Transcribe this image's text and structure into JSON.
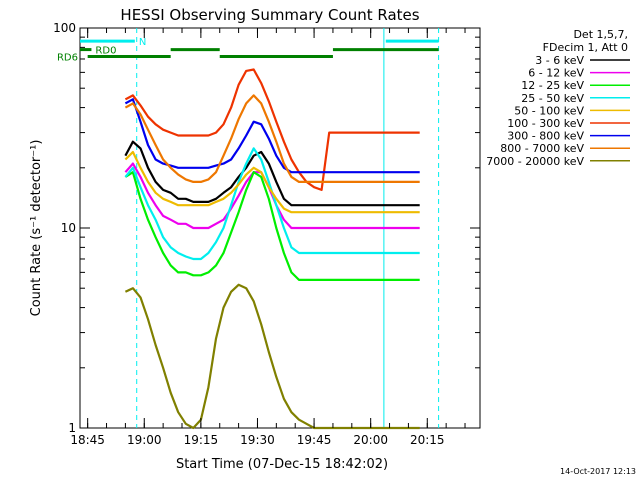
{
  "chart_data": {
    "type": "line",
    "title": "HESSI Observing Summary Count Rates",
    "xlabel": "Start Time (07-Dec-15 18:42:02)",
    "ylabel": "Count Rate (s⁻¹ detector⁻¹)",
    "yscale": "log",
    "ylim": [
      1,
      100
    ],
    "xlim": [
      -2.03,
      103.97
    ],
    "x_unit": "minutes after 18:45",
    "yticks": [
      1,
      10,
      100
    ],
    "ytick_labels": [
      "1",
      "10",
      "100"
    ],
    "xticks": [
      0,
      15,
      30,
      45,
      60,
      75,
      90
    ],
    "xtick_labels": [
      "18:45",
      "19:00",
      "19:15",
      "19:30",
      "19:45",
      "20:00",
      "20:15"
    ],
    "legend_header": [
      "Det 1,5,7,",
      "FDecim 1, Att 0"
    ],
    "legend_position": "right",
    "series": [
      {
        "name": "3 - 6 keV",
        "color": "#000000",
        "x": [
          9,
          10,
          12,
          14,
          16,
          18,
          20,
          22,
          24,
          26,
          28,
          30,
          32,
          34,
          36,
          38,
          40,
          42,
          44,
          46,
          48,
          50,
          52,
          54,
          56,
          58,
          60,
          62,
          64,
          66,
          68,
          70,
          72,
          74,
          76,
          78,
          80,
          82,
          84,
          86,
          88
        ],
        "values": [
          null,
          23,
          27,
          25,
          20,
          17,
          15.5,
          15,
          14,
          14,
          13.5,
          13.5,
          13.5,
          14,
          15,
          16,
          18,
          20,
          23,
          24,
          21,
          17,
          14,
          13,
          13,
          13,
          13,
          13,
          13,
          13,
          13,
          13,
          13,
          13,
          13,
          13,
          13,
          13,
          13,
          13,
          13
        ]
      },
      {
        "name": "6 - 12 keV",
        "color": "#ee00ee",
        "x": [
          10,
          12,
          14,
          16,
          18,
          20,
          22,
          24,
          26,
          28,
          30,
          32,
          34,
          36,
          38,
          40,
          42,
          44,
          46,
          48,
          50,
          52,
          54,
          56,
          58,
          60,
          62,
          64,
          66,
          68,
          70,
          72,
          74,
          76,
          78,
          80,
          82,
          84,
          86,
          88
        ],
        "values": [
          19,
          21,
          18,
          15,
          13,
          11.5,
          11,
          10.5,
          10.5,
          10,
          10,
          10,
          10.5,
          11,
          12.5,
          14.5,
          17,
          19,
          19,
          16,
          13,
          11,
          10,
          10,
          10,
          10,
          10,
          10,
          10,
          10,
          10,
          10,
          10,
          10,
          10,
          10,
          10,
          10,
          10,
          10
        ]
      },
      {
        "name": "12 - 25 keV",
        "color": "#00ee00",
        "x": [
          10,
          12,
          14,
          16,
          18,
          20,
          22,
          24,
          26,
          28,
          30,
          32,
          34,
          36,
          38,
          40,
          42,
          44,
          46,
          48,
          50,
          52,
          54,
          56,
          58,
          60,
          62,
          64,
          66,
          68,
          70,
          72,
          74,
          76,
          78,
          80,
          82,
          84,
          86,
          88
        ],
        "values": [
          18,
          19,
          14,
          11,
          9,
          7.5,
          6.5,
          6,
          6,
          5.8,
          5.8,
          6,
          6.5,
          7.5,
          9.5,
          12,
          15.5,
          19,
          18,
          14,
          10,
          7.5,
          6,
          5.5,
          5.5,
          5.5,
          5.5,
          5.5,
          5.5,
          5.5,
          5.5,
          5.5,
          5.5,
          5.5,
          5.5,
          5.5,
          5.5,
          5.5,
          5.5,
          5.5
        ]
      },
      {
        "name": "25 - 50 keV",
        "color": "#00eeee",
        "x": [
          10,
          12,
          14,
          16,
          18,
          20,
          22,
          24,
          26,
          28,
          30,
          32,
          34,
          36,
          38,
          40,
          42,
          44,
          46,
          48,
          50,
          52,
          54,
          56,
          58,
          60,
          62,
          64,
          66,
          68,
          70,
          72,
          74,
          76,
          78,
          80,
          82,
          84,
          86,
          88
        ],
        "values": [
          18,
          20,
          16,
          13,
          11,
          9,
          8,
          7.5,
          7.2,
          7,
          7,
          7.5,
          8.5,
          10,
          13,
          17,
          21,
          25,
          22,
          17,
          13,
          10,
          8,
          7.5,
          7.5,
          7.5,
          7.5,
          7.5,
          7.5,
          7.5,
          7.5,
          7.5,
          7.5,
          7.5,
          7.5,
          7.5,
          7.5,
          7.5,
          7.5,
          7.5
        ]
      },
      {
        "name": "50 - 100 keV",
        "color": "#eebb00",
        "x": [
          10,
          12,
          14,
          16,
          18,
          20,
          22,
          24,
          26,
          28,
          30,
          32,
          34,
          36,
          38,
          40,
          42,
          44,
          46,
          48,
          50,
          52,
          54,
          56,
          58,
          60,
          62,
          64,
          66,
          68,
          70,
          72,
          74,
          76,
          78,
          80,
          82,
          84,
          86,
          88
        ],
        "values": [
          22,
          24,
          20,
          17,
          15,
          14,
          13.5,
          13,
          13,
          13,
          13,
          13,
          13.5,
          14,
          15,
          16.5,
          18.5,
          20,
          19,
          16,
          14,
          12.5,
          12,
          12,
          12,
          12,
          12,
          12,
          12,
          12,
          12,
          12,
          12,
          12,
          12,
          12,
          12,
          12,
          12,
          12
        ]
      },
      {
        "name": "100 - 300 keV",
        "color": "#ee3300",
        "x": [
          9,
          10,
          12,
          14,
          16,
          18,
          20,
          22,
          24,
          26,
          28,
          30,
          32,
          34,
          36,
          38,
          40,
          42,
          44,
          46,
          48,
          50,
          52,
          54,
          56,
          58,
          60,
          62,
          64,
          66,
          68,
          70,
          72,
          74,
          76,
          78,
          80,
          82,
          84,
          86,
          88
        ],
        "values": [
          null,
          44,
          46,
          41,
          36,
          33,
          31,
          30,
          29,
          29,
          29,
          29,
          29,
          30,
          33,
          40,
          52,
          61,
          62,
          53,
          43,
          34,
          27,
          22,
          19,
          17,
          16,
          15.5,
          30,
          30,
          30,
          30,
          30,
          30,
          30,
          30,
          30,
          30,
          30,
          30,
          30
        ]
      },
      {
        "name": "300 - 800 keV",
        "color": "#0000ee",
        "x": [
          10,
          12,
          14,
          16,
          18,
          20,
          22,
          24,
          26,
          28,
          30,
          32,
          34,
          36,
          38,
          40,
          42,
          44,
          46,
          48,
          50,
          52,
          54,
          56,
          58,
          60,
          62,
          64,
          66,
          68,
          70,
          72,
          74,
          76,
          78,
          80,
          82,
          84,
          86,
          88
        ],
        "values": [
          42,
          44,
          34,
          26,
          22,
          21,
          20.5,
          20,
          20,
          20,
          20,
          20,
          20.5,
          21,
          22,
          25,
          29,
          34,
          33,
          28,
          23,
          20,
          19,
          19,
          19,
          19,
          19,
          19,
          19,
          19,
          19,
          19,
          19,
          19,
          19,
          19,
          19,
          19,
          19,
          19
        ]
      },
      {
        "name": "800 - 7000 keV",
        "color": "#ee7700",
        "x": [
          10,
          12,
          14,
          16,
          18,
          20,
          22,
          24,
          26,
          28,
          30,
          32,
          34,
          36,
          38,
          40,
          42,
          44,
          46,
          48,
          50,
          52,
          54,
          56,
          58,
          60,
          62,
          64,
          66,
          68,
          70,
          72,
          74,
          76,
          78,
          80,
          82,
          84,
          86,
          88
        ],
        "values": [
          40,
          42,
          37,
          31,
          26,
          22,
          20,
          18.5,
          17.5,
          17,
          17,
          17.5,
          19,
          23,
          28,
          35,
          42,
          46,
          42,
          34,
          27,
          21,
          18,
          17,
          17,
          17,
          17,
          17,
          17,
          17,
          17,
          17,
          17,
          17,
          17,
          17,
          17,
          17,
          17,
          17
        ]
      },
      {
        "name": "7000 - 20000 keV",
        "color": "#808000",
        "x": [
          9,
          10,
          12,
          14,
          16,
          18,
          20,
          22,
          24,
          26,
          28,
          30,
          32,
          34,
          36,
          38,
          40,
          42,
          44,
          46,
          48,
          50,
          52,
          54,
          56,
          58,
          60,
          62,
          64,
          66,
          68,
          70,
          72,
          74,
          76,
          78,
          80,
          82,
          84,
          86,
          88
        ],
        "values": [
          null,
          4.8,
          5,
          4.5,
          3.5,
          2.6,
          2,
          1.5,
          1.2,
          1.05,
          1,
          1.1,
          1.6,
          2.8,
          4,
          4.8,
          5.2,
          5,
          4.3,
          3.3,
          2.4,
          1.8,
          1.4,
          1.2,
          1.1,
          1.05,
          1,
          1,
          1,
          1,
          1,
          1,
          1,
          1,
          1,
          1,
          1,
          1,
          1,
          1,
          1
        ]
      }
    ],
    "flag_bars": [
      {
        "label": "N",
        "color": "#00eeee",
        "level": 86,
        "segments": [
          [
            -2.03,
            12.5
          ],
          [
            79,
            93
          ]
        ]
      },
      {
        "label": "RD0",
        "color": "#008000",
        "level": 78,
        "segments": [
          [
            -2.03,
            1
          ],
          [
            22,
            35
          ],
          [
            65,
            93
          ]
        ]
      },
      {
        "label": "RD6",
        "color": "#008000",
        "level": 72,
        "segments": [
          [
            0,
            22
          ],
          [
            35,
            65
          ]
        ]
      }
    ],
    "vertical_markers": [
      {
        "x": 13,
        "style": "dashed",
        "color": "#00eeee"
      },
      {
        "x": 78.5,
        "style": "solid",
        "color": "#00eeee"
      },
      {
        "x": 93,
        "style": "dashed",
        "color": "#00eeee"
      }
    ],
    "annotation": "14-Oct-2017 12:13"
  }
}
